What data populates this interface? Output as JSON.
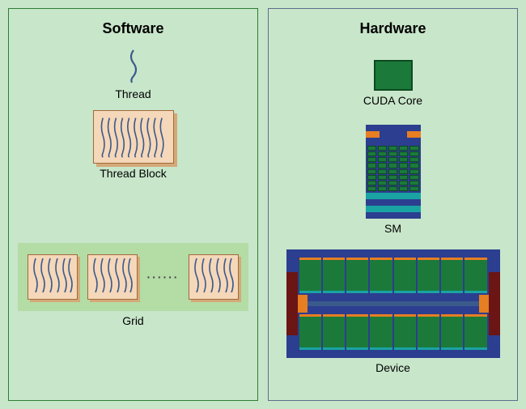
{
  "software": {
    "title": "Software",
    "thread_label": "Thread",
    "thread_block_label": "Thread Block",
    "grid_label": "Grid",
    "panel_border": "#2e7d32",
    "block_bg": "#f5d7b9",
    "block_border": "#9e6b3a",
    "block_shadow": "#d4a978",
    "grid_bg": "#b4dca5",
    "thread_stroke": "#3a5a8c",
    "ellipsis": "······"
  },
  "hardware": {
    "title": "Hardware",
    "cuda_core_label": "CUDA Core",
    "sm_label": "SM",
    "device_label": "Device",
    "panel_border": "#5e6e8e",
    "core_fill": "#1b7a3a",
    "core_border": "#0d4a20",
    "navy": "#2c3e8f",
    "orange": "#e67e22",
    "teal": "#1aa3a3",
    "darkred": "#6b1515",
    "sm_core_cols": 5,
    "sm_core_rows": 8,
    "device_sm_count": 8
  },
  "page_bg": "#c8e6ca",
  "title_fontsize": 18,
  "label_fontsize": 14
}
